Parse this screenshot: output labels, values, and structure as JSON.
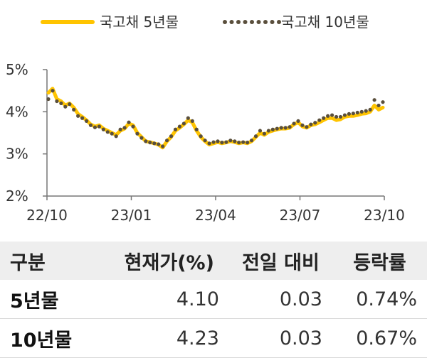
{
  "colors": {
    "series_5y": "#FFC400",
    "series_10y": "#5A4F3C",
    "axis": "#777777",
    "header_bg": "#eeeeee"
  },
  "chart_data": {
    "type": "line",
    "title": "",
    "xlabel": "",
    "ylabel": "",
    "ylim": [
      2,
      5
    ],
    "y_ticks": [
      {
        "value": 5,
        "label": "5%"
      },
      {
        "value": 4,
        "label": "4%"
      },
      {
        "value": 3,
        "label": "3%"
      },
      {
        "value": 2,
        "label": "2%"
      }
    ],
    "x_ticks": [
      "22/10",
      "23/01",
      "23/04",
      "23/07",
      "23/10"
    ],
    "legend_position": "top",
    "series": [
      {
        "name": "국고채 5년물",
        "style": "solid",
        "values": [
          4.45,
          4.55,
          4.3,
          4.25,
          4.15,
          4.2,
          4.1,
          3.95,
          3.88,
          3.8,
          3.7,
          3.65,
          3.68,
          3.6,
          3.55,
          3.5,
          3.45,
          3.55,
          3.6,
          3.72,
          3.68,
          3.5,
          3.4,
          3.3,
          3.28,
          3.25,
          3.22,
          3.15,
          3.3,
          3.4,
          3.55,
          3.62,
          3.7,
          3.8,
          3.75,
          3.55,
          3.4,
          3.3,
          3.22,
          3.25,
          3.28,
          3.25,
          3.27,
          3.3,
          3.28,
          3.25,
          3.27,
          3.25,
          3.3,
          3.4,
          3.5,
          3.45,
          3.52,
          3.55,
          3.58,
          3.6,
          3.6,
          3.62,
          3.7,
          3.75,
          3.65,
          3.62,
          3.68,
          3.7,
          3.75,
          3.8,
          3.85,
          3.85,
          3.8,
          3.82,
          3.88,
          3.9,
          3.9,
          3.92,
          3.95,
          3.96,
          4.0,
          4.15,
          4.05,
          4.1
        ]
      },
      {
        "name": "국고채 10년물",
        "style": "dotted",
        "values": [
          4.3,
          4.5,
          4.25,
          4.2,
          4.12,
          4.18,
          4.05,
          3.9,
          3.85,
          3.78,
          3.68,
          3.63,
          3.65,
          3.58,
          3.52,
          3.48,
          3.42,
          3.58,
          3.62,
          3.75,
          3.65,
          3.48,
          3.38,
          3.3,
          3.27,
          3.25,
          3.23,
          3.18,
          3.32,
          3.42,
          3.58,
          3.65,
          3.72,
          3.85,
          3.78,
          3.58,
          3.42,
          3.32,
          3.25,
          3.28,
          3.3,
          3.27,
          3.28,
          3.32,
          3.3,
          3.27,
          3.28,
          3.27,
          3.32,
          3.42,
          3.55,
          3.48,
          3.55,
          3.58,
          3.6,
          3.62,
          3.62,
          3.64,
          3.72,
          3.78,
          3.68,
          3.64,
          3.7,
          3.74,
          3.8,
          3.85,
          3.9,
          3.92,
          3.88,
          3.88,
          3.92,
          3.95,
          3.96,
          3.98,
          4.0,
          4.02,
          4.05,
          4.28,
          4.15,
          4.23
        ]
      }
    ]
  },
  "table": {
    "headers": [
      "구분",
      "현재가(%)",
      "전일 대비",
      "등락률"
    ],
    "rows": [
      [
        "5년물",
        "4.10",
        "0.03",
        "0.74%"
      ],
      [
        "10년물",
        "4.23",
        "0.03",
        "0.67%"
      ]
    ]
  }
}
